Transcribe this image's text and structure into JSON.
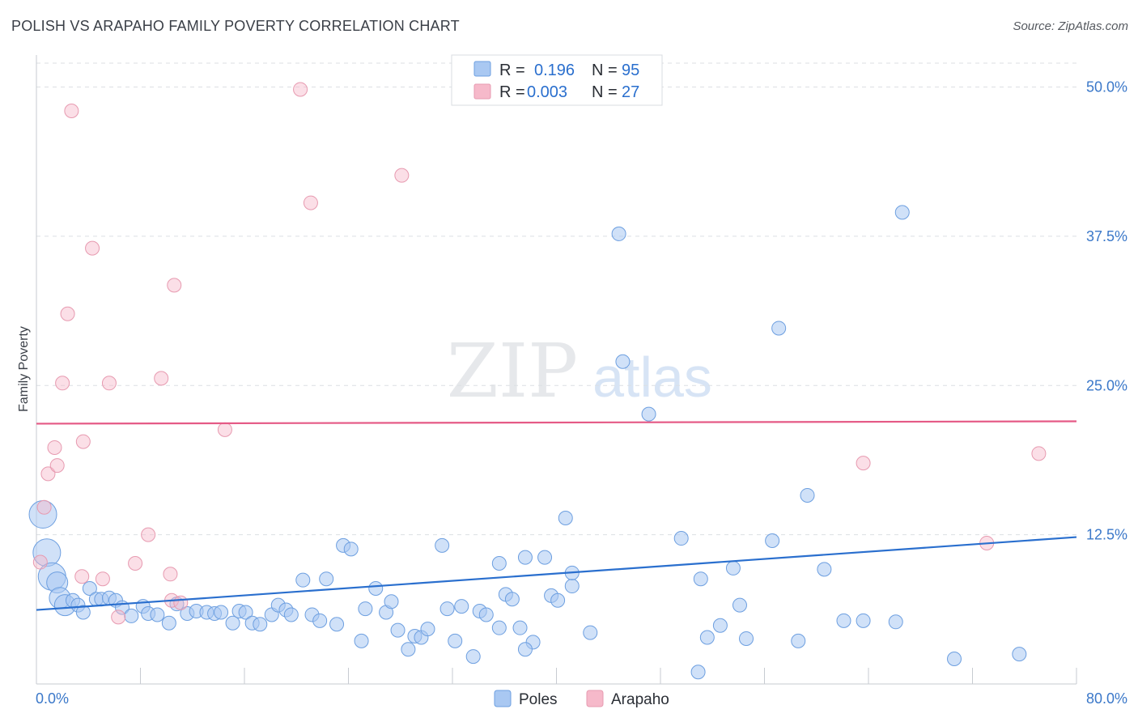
{
  "header": {
    "title": "POLISH VS ARAPAHO FAMILY POVERTY CORRELATION CHART",
    "source": "Source: ZipAtlas.com"
  },
  "watermark": {
    "zip": "ZIP",
    "atlas": "atlas"
  },
  "legend": {
    "rows": [
      {
        "r_label": "R =",
        "r_value": "0.196",
        "n_label": "N =",
        "n_value": "95",
        "color": "#a9c8f2"
      },
      {
        "r_label": "R =",
        "r_value": "0.003",
        "n_label": "N =",
        "n_value": "27",
        "color": "#f6b9ca"
      }
    ]
  },
  "chart_data": {
    "type": "scatter",
    "title": "POLISH VS ARAPAHO FAMILY POVERTY CORRELATION CHART",
    "ylabel": "Family Poverty",
    "xlim": [
      0,
      80
    ],
    "ylim": [
      0,
      52
    ],
    "x_tick_labels": [
      "0.0%",
      "80.0%"
    ],
    "y_ticks": [
      {
        "value": 12.5,
        "label": "12.5%"
      },
      {
        "value": 25.0,
        "label": "25.0%"
      },
      {
        "value": 37.5,
        "label": "37.5%"
      },
      {
        "value": 50.0,
        "label": "50.0%"
      }
    ],
    "grid": "horizontal-dashed",
    "legend_position": "top-center",
    "series": [
      {
        "name": "Poles",
        "color": "#a9c8f2",
        "stroke": "#6d9fe0",
        "trend": {
          "x": [
            0,
            80
          ],
          "y": [
            6.2,
            12.3
          ],
          "color": "#2a6fce"
        },
        "points": [
          [
            0.5,
            14.2,
            3
          ],
          [
            0.8,
            11.0,
            3
          ],
          [
            1.2,
            9.0,
            3
          ],
          [
            1.6,
            8.5,
            2
          ],
          [
            1.8,
            7.2,
            2
          ],
          [
            2.2,
            6.6,
            2
          ],
          [
            2.8,
            7.0,
            1
          ],
          [
            3.2,
            6.6,
            1
          ],
          [
            3.6,
            6.0,
            1
          ],
          [
            4.1,
            8.0,
            1
          ],
          [
            4.6,
            7.1,
            1
          ],
          [
            5.0,
            7.1,
            1
          ],
          [
            5.6,
            7.2,
            1
          ],
          [
            6.1,
            7.0,
            1
          ],
          [
            6.6,
            6.4,
            1
          ],
          [
            7.3,
            5.7,
            1
          ],
          [
            8.2,
            6.5,
            1
          ],
          [
            8.6,
            5.9,
            1
          ],
          [
            9.3,
            5.8,
            1
          ],
          [
            10.2,
            5.1,
            1
          ],
          [
            10.8,
            6.7,
            1
          ],
          [
            11.6,
            5.9,
            1
          ],
          [
            12.3,
            6.1,
            1
          ],
          [
            13.1,
            6.0,
            1
          ],
          [
            13.7,
            5.9,
            1
          ],
          [
            14.2,
            6.0,
            1
          ],
          [
            15.1,
            5.1,
            1
          ],
          [
            15.6,
            6.1,
            1
          ],
          [
            16.1,
            6.0,
            1
          ],
          [
            16.6,
            5.1,
            1
          ],
          [
            17.2,
            5.0,
            1
          ],
          [
            18.1,
            5.8,
            1
          ],
          [
            18.6,
            6.6,
            1
          ],
          [
            19.2,
            6.2,
            1
          ],
          [
            19.6,
            5.8,
            1
          ],
          [
            20.5,
            8.7,
            1
          ],
          [
            21.2,
            5.8,
            1
          ],
          [
            21.8,
            5.3,
            1
          ],
          [
            22.3,
            8.8,
            1
          ],
          [
            23.1,
            5.0,
            1
          ],
          [
            23.6,
            11.6,
            1
          ],
          [
            24.2,
            11.3,
            1
          ],
          [
            25.0,
            3.6,
            1
          ],
          [
            25.3,
            6.3,
            1
          ],
          [
            26.1,
            8.0,
            1
          ],
          [
            26.9,
            6.0,
            1
          ],
          [
            27.3,
            6.9,
            1
          ],
          [
            27.8,
            4.5,
            1
          ],
          [
            28.6,
            2.9,
            1
          ],
          [
            29.1,
            4.0,
            1
          ],
          [
            29.6,
            3.9,
            1
          ],
          [
            30.1,
            4.6,
            1
          ],
          [
            31.2,
            11.6,
            1
          ],
          [
            31.6,
            6.3,
            1
          ],
          [
            32.2,
            3.6,
            1
          ],
          [
            32.7,
            6.5,
            1
          ],
          [
            33.6,
            2.3,
            1
          ],
          [
            34.1,
            6.1,
            1
          ],
          [
            34.6,
            5.8,
            1
          ],
          [
            35.6,
            10.1,
            1
          ],
          [
            36.1,
            7.5,
            1
          ],
          [
            36.6,
            7.1,
            1
          ],
          [
            37.2,
            4.7,
            1
          ],
          [
            37.6,
            10.6,
            1
          ],
          [
            38.2,
            3.5,
            1
          ],
          [
            39.1,
            10.6,
            1
          ],
          [
            39.6,
            7.4,
            1
          ],
          [
            40.1,
            7.0,
            1
          ],
          [
            40.7,
            13.9,
            1
          ],
          [
            41.2,
            8.2,
            1
          ],
          [
            42.6,
            4.3,
            1
          ],
          [
            37.6,
            2.9,
            1
          ],
          [
            35.6,
            4.7,
            1
          ],
          [
            41.2,
            9.3,
            1
          ],
          [
            45.1,
            27.0,
            1
          ],
          [
            44.8,
            37.7,
            1
          ],
          [
            47.1,
            22.6,
            1
          ],
          [
            49.6,
            12.2,
            1
          ],
          [
            50.9,
            1.0,
            1
          ],
          [
            51.1,
            8.8,
            1
          ],
          [
            51.6,
            3.9,
            1
          ],
          [
            52.6,
            4.9,
            1
          ],
          [
            53.6,
            9.7,
            1
          ],
          [
            54.1,
            6.6,
            1
          ],
          [
            54.6,
            3.8,
            1
          ],
          [
            56.6,
            12.0,
            1
          ],
          [
            57.1,
            29.8,
            1
          ],
          [
            58.6,
            3.6,
            1
          ],
          [
            59.3,
            15.8,
            1
          ],
          [
            60.6,
            9.6,
            1
          ],
          [
            62.1,
            5.3,
            1
          ],
          [
            63.6,
            5.3,
            1
          ],
          [
            66.1,
            5.2,
            1
          ],
          [
            66.6,
            39.5,
            1
          ],
          [
            70.6,
            2.1,
            1
          ],
          [
            75.6,
            2.5,
            1
          ]
        ]
      },
      {
        "name": "Arapaho",
        "color": "#f6b9ca",
        "stroke": "#e79ab0",
        "trend": {
          "x": [
            0,
            80
          ],
          "y": [
            21.8,
            22.0
          ],
          "color": "#e55a86"
        },
        "points": [
          [
            0.3,
            10.2
          ],
          [
            0.6,
            14.8
          ],
          [
            0.9,
            17.6
          ],
          [
            1.4,
            19.8
          ],
          [
            1.6,
            18.3
          ],
          [
            2.0,
            25.2
          ],
          [
            2.4,
            31.0
          ],
          [
            2.7,
            48.0
          ],
          [
            3.5,
            9.0
          ],
          [
            3.6,
            20.3
          ],
          [
            4.3,
            36.5
          ],
          [
            5.1,
            8.8
          ],
          [
            5.6,
            25.2
          ],
          [
            6.3,
            5.6
          ],
          [
            7.6,
            10.1
          ],
          [
            8.6,
            12.5
          ],
          [
            9.6,
            25.6
          ],
          [
            10.3,
            9.2
          ],
          [
            10.4,
            7.0
          ],
          [
            10.6,
            33.4
          ],
          [
            11.1,
            6.8
          ],
          [
            14.5,
            21.3
          ],
          [
            20.3,
            49.8
          ],
          [
            21.1,
            40.3
          ],
          [
            28.1,
            42.6
          ],
          [
            63.6,
            18.5
          ],
          [
            73.1,
            11.8
          ],
          [
            77.1,
            19.3
          ]
        ]
      }
    ]
  },
  "bottom_legend": [
    {
      "label": "Poles",
      "color": "#a9c8f2"
    },
    {
      "label": "Arapaho",
      "color": "#f6b9ca"
    }
  ]
}
